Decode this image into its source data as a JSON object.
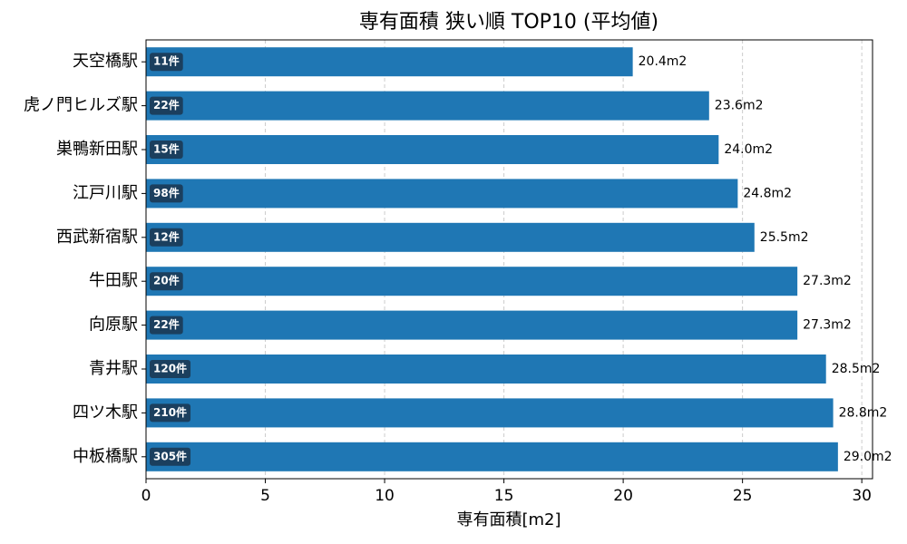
{
  "chart_data": {
    "type": "barh",
    "title": "専有面積 狭い順 TOP10 (平均値)",
    "x_label": "専有面積[m2]",
    "categories": [
      "天空橋駅",
      "虎ノ門ヒルズ駅",
      "巣鴨新田駅",
      "江戸川駅",
      "西武新宿駅",
      "牛田駅",
      "向原駅",
      "青井駅",
      "四ツ木駅",
      "中板橋駅"
    ],
    "values": [
      20.4,
      23.6,
      24.0,
      24.8,
      25.5,
      27.3,
      27.3,
      28.5,
      28.8,
      29.0
    ],
    "value_labels": [
      "20.4m2",
      "23.6m2",
      "24.0m2",
      "24.8m2",
      "25.5m2",
      "27.3m2",
      "27.3m2",
      "28.5m2",
      "28.8m2",
      "29.0m2"
    ],
    "count_labels": [
      "11件",
      "22件",
      "15件",
      "98件",
      "12件",
      "20件",
      "22件",
      "120件",
      "210件",
      "305件"
    ],
    "color": "#1f77b4",
    "xlim": [
      0,
      30.45
    ],
    "xticks": [
      0,
      5,
      10,
      15,
      20,
      25,
      30
    ],
    "grid": true
  }
}
